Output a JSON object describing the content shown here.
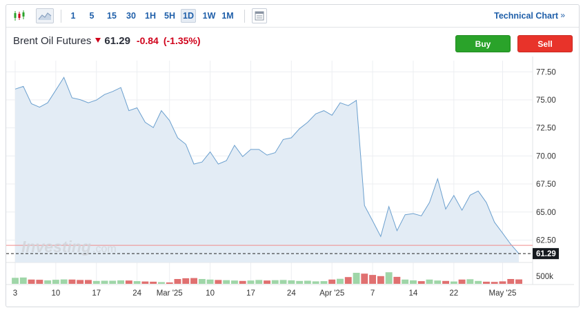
{
  "toolbar": {
    "timeframes": [
      "1",
      "5",
      "15",
      "30",
      "1H",
      "5H",
      "1D",
      "1W",
      "1M"
    ],
    "active_timeframe": "1D",
    "technical_chart_label": "Technical Chart",
    "technical_chart_arrow": "»"
  },
  "instrument": {
    "name": "Brent Oil Futures",
    "last": "61.29",
    "change": "-0.84",
    "change_pct": "(-1.35%)"
  },
  "buttons": {
    "buy": "Buy",
    "sell": "Sell"
  },
  "watermark": {
    "brand": "Investing",
    "suffix": ".com"
  },
  "colors": {
    "line": "#6a9fce",
    "area": "#e3ecf5",
    "price_line": "#f08a8a",
    "volume_up": "#9fd6a8",
    "volume_down": "#e07070",
    "down": "#d0021b",
    "buy": "#2aa32a",
    "sell": "#e8332a",
    "link": "#1f5fa9"
  },
  "chart_data": {
    "type": "area",
    "title": "",
    "ylim": [
      60.5,
      78.5
    ],
    "y_ticks": [
      62.5,
      65.0,
      67.5,
      70.0,
      72.5,
      75.0,
      77.5
    ],
    "y_tick_labels": [
      "62.50",
      "65.00",
      "67.50",
      "70.00",
      "72.50",
      "75.00",
      "77.50"
    ],
    "current_value": 61.29,
    "current_label": "61.29",
    "x_tick_labels": [
      "3",
      "10",
      "17",
      "24",
      "Mar '25",
      "10",
      "17",
      "24",
      "Apr '25",
      "7",
      "14",
      "22",
      "May '25"
    ],
    "x_tick_index": [
      0,
      5,
      10,
      15,
      19,
      24,
      29,
      34,
      39,
      44,
      49,
      54,
      60
    ],
    "grid": true,
    "volume_axis_label": "500k",
    "volume_ref": 500,
    "series": [
      {
        "values": [
          75.96,
          76.2,
          74.66,
          74.35,
          74.74,
          75.87,
          77.0,
          75.18,
          75.02,
          74.74,
          74.98,
          75.48,
          75.75,
          76.1,
          74.04,
          74.29,
          73.0,
          72.53,
          74.04,
          73.16,
          71.62,
          71.04,
          69.28,
          69.46,
          70.36,
          69.28,
          69.58,
          70.95,
          69.94,
          70.58,
          70.58,
          70.08,
          70.29,
          71.47,
          71.62,
          72.43,
          73.0,
          73.75,
          74.04,
          73.63,
          74.74,
          74.49,
          74.95,
          65.58,
          64.21,
          62.82,
          65.48,
          63.33,
          64.76,
          64.86,
          64.66,
          65.85,
          67.96,
          65.26,
          66.47,
          65.16,
          66.5,
          66.87,
          65.85,
          64.09,
          63.12,
          62.13,
          61.29
        ]
      }
    ],
    "volume": {
      "values": [
        310,
        330,
        220,
        210,
        180,
        210,
        230,
        220,
        200,
        200,
        150,
        160,
        160,
        180,
        170,
        140,
        120,
        110,
        90,
        70,
        250,
        290,
        300,
        250,
        220,
        200,
        190,
        170,
        150,
        170,
        200,
        170,
        190,
        200,
        180,
        150,
        160,
        130,
        140,
        220,
        260,
        350,
        570,
        530,
        460,
        400,
        600,
        360,
        220,
        180,
        140,
        220,
        170,
        150,
        120,
        220,
        240,
        150,
        110,
        100,
        130,
        250,
        230
      ],
      "down": [
        false,
        false,
        true,
        true,
        false,
        false,
        false,
        true,
        true,
        true,
        false,
        false,
        false,
        false,
        true,
        false,
        true,
        true,
        false,
        true,
        true,
        true,
        true,
        false,
        false,
        true,
        false,
        false,
        true,
        false,
        false,
        true,
        false,
        false,
        false,
        false,
        false,
        false,
        false,
        true,
        false,
        true,
        false,
        true,
        true,
        true,
        false,
        true,
        false,
        false,
        true,
        false,
        false,
        true,
        false,
        true,
        false,
        false,
        true,
        true,
        true,
        true,
        true
      ]
    }
  }
}
